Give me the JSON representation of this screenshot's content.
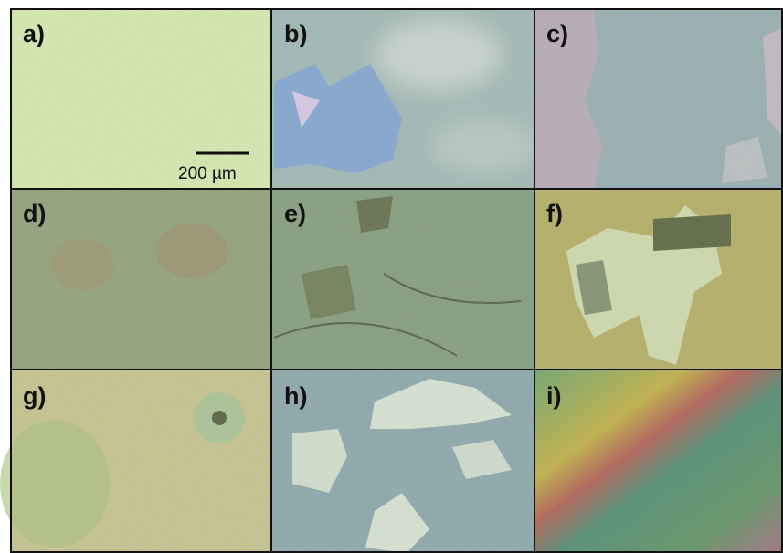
{
  "panels": [
    {
      "label": "a)"
    },
    {
      "label": "b)"
    },
    {
      "label": "c)"
    },
    {
      "label": "d)"
    },
    {
      "label": "e)"
    },
    {
      "label": "f)"
    },
    {
      "label": "g)"
    },
    {
      "label": "h)"
    },
    {
      "label": "i)"
    }
  ],
  "scale_bar": "200 µm"
}
